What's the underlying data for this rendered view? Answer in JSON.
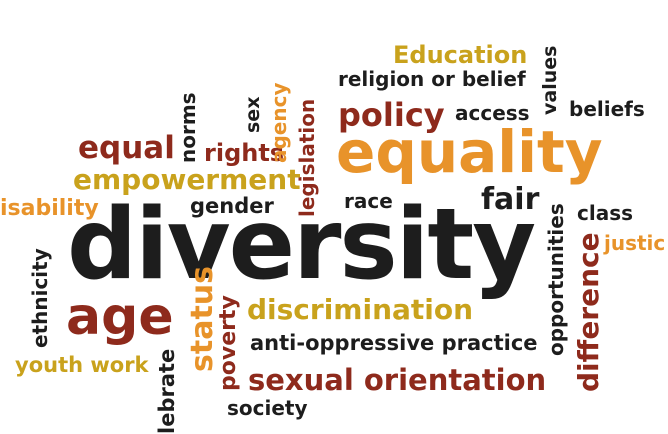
{
  "words": {
    "education": "Education",
    "religion": "religion or belief",
    "values": "values",
    "policy": "policy",
    "access": "access",
    "beliefs": "beliefs",
    "equal": "equal",
    "norms": "norms",
    "rights": "rights",
    "sex": "sex",
    "agency": "agency",
    "legislation": "legislation",
    "equality": "equality",
    "empowerment": "empowerment",
    "disability": "isability",
    "gender": "gender",
    "race": "race",
    "fair": "fair",
    "class": "class",
    "justice": "justic",
    "opportunities": "opportunities",
    "difference": "difference",
    "ethnicity": "ethnicity",
    "diversity": "diversity",
    "age": "age",
    "status": "status",
    "poverty": "poverty",
    "discrimination": "discrimination",
    "anti_oppressive": "anti-oppressive practice",
    "youth_work": "youth work",
    "debrate": "lebrate",
    "sexual_orientation": "sexual orientation",
    "society": "society"
  },
  "colors": {
    "black": "#1d1d1d",
    "dark_red": "#8e2a1c",
    "orange": "#e8932a",
    "gold": "#c9a21c"
  }
}
